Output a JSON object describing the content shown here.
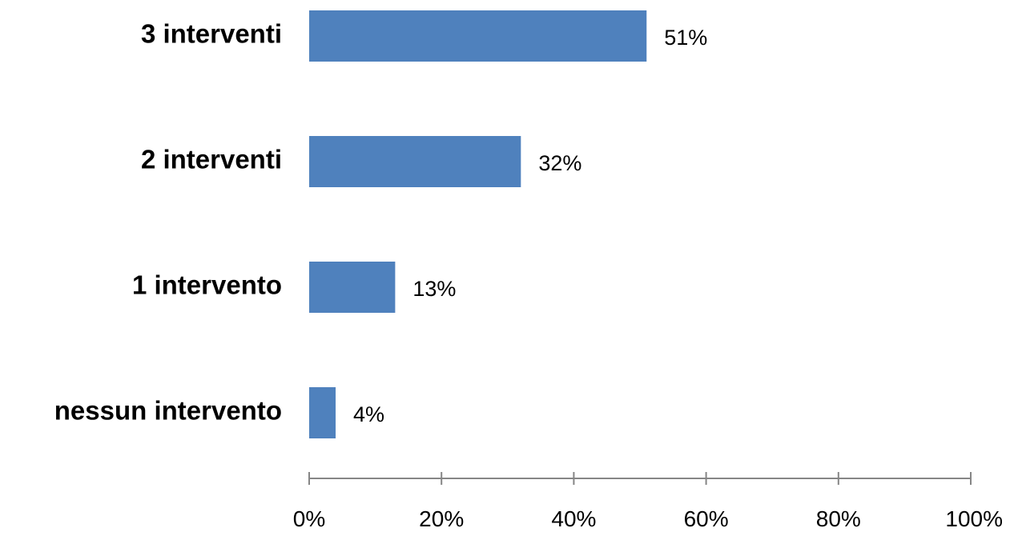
{
  "chart_data": {
    "type": "bar",
    "orientation": "horizontal",
    "categories": [
      "3 interventi",
      "2 interventi",
      "1 intervento",
      "nessun intervento"
    ],
    "values": [
      51,
      32,
      13,
      4
    ],
    "data_labels": [
      "51%",
      "32%",
      "13%",
      "4%"
    ],
    "xlim": [
      0,
      100
    ],
    "x_ticks": [
      0,
      20,
      40,
      60,
      80,
      100
    ],
    "x_tick_labels": [
      "0%",
      "20%",
      "40%",
      "60%",
      "80%",
      "100%"
    ],
    "title": "",
    "xlabel": "",
    "ylabel": "",
    "grid": false,
    "legend": "none",
    "bar_color": "#4F81BD"
  }
}
